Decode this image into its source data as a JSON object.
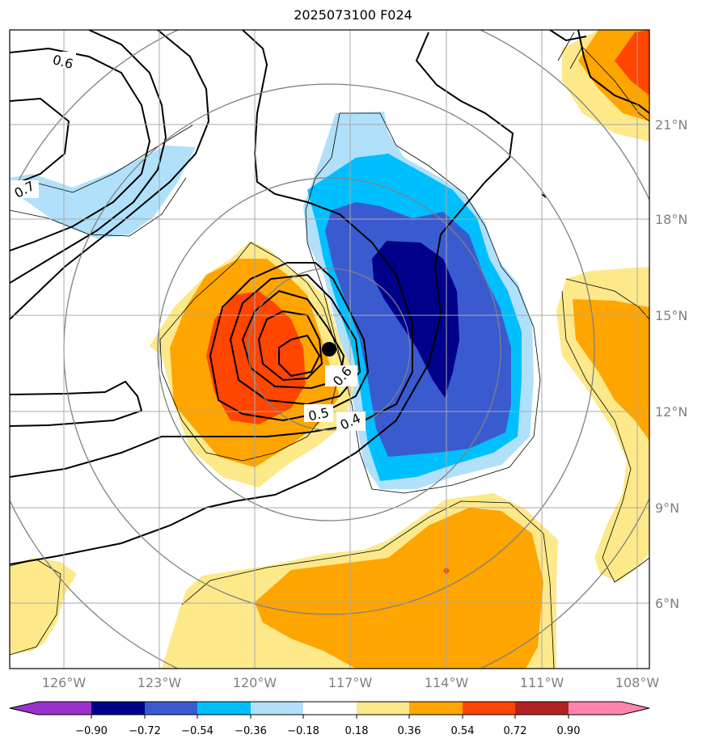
{
  "title": "2025073100 F024",
  "map": {
    "lon_labels": [
      "126°W",
      "123°W",
      "120°W",
      "117°W",
      "114°W",
      "111°W",
      "108°W"
    ],
    "lat_labels": [
      "21°N",
      "18°N",
      "15°N",
      "12°N",
      "9°N",
      "6°N"
    ],
    "contour_labels": [
      "0.6",
      "0.7",
      "0.6",
      "0.5",
      "0.4"
    ],
    "colorbar_labels": [
      "−0.90",
      "−0.72",
      "−0.54",
      "−0.36",
      "−0.18",
      "0.18",
      "0.36",
      "0.54",
      "0.72",
      "0.90"
    ],
    "colors": {
      "purple": "#9932cc",
      "navy": "#00008b",
      "royal": "#3a5bd0",
      "cyan": "#00bfff",
      "lightblue": "#b0e0fa",
      "white": "#ffffff",
      "lightyellow": "#fde98a",
      "orange": "#ffa500",
      "redorange": "#ff4500",
      "firebrick": "#b22222",
      "pink": "#ff85b0"
    }
  }
}
